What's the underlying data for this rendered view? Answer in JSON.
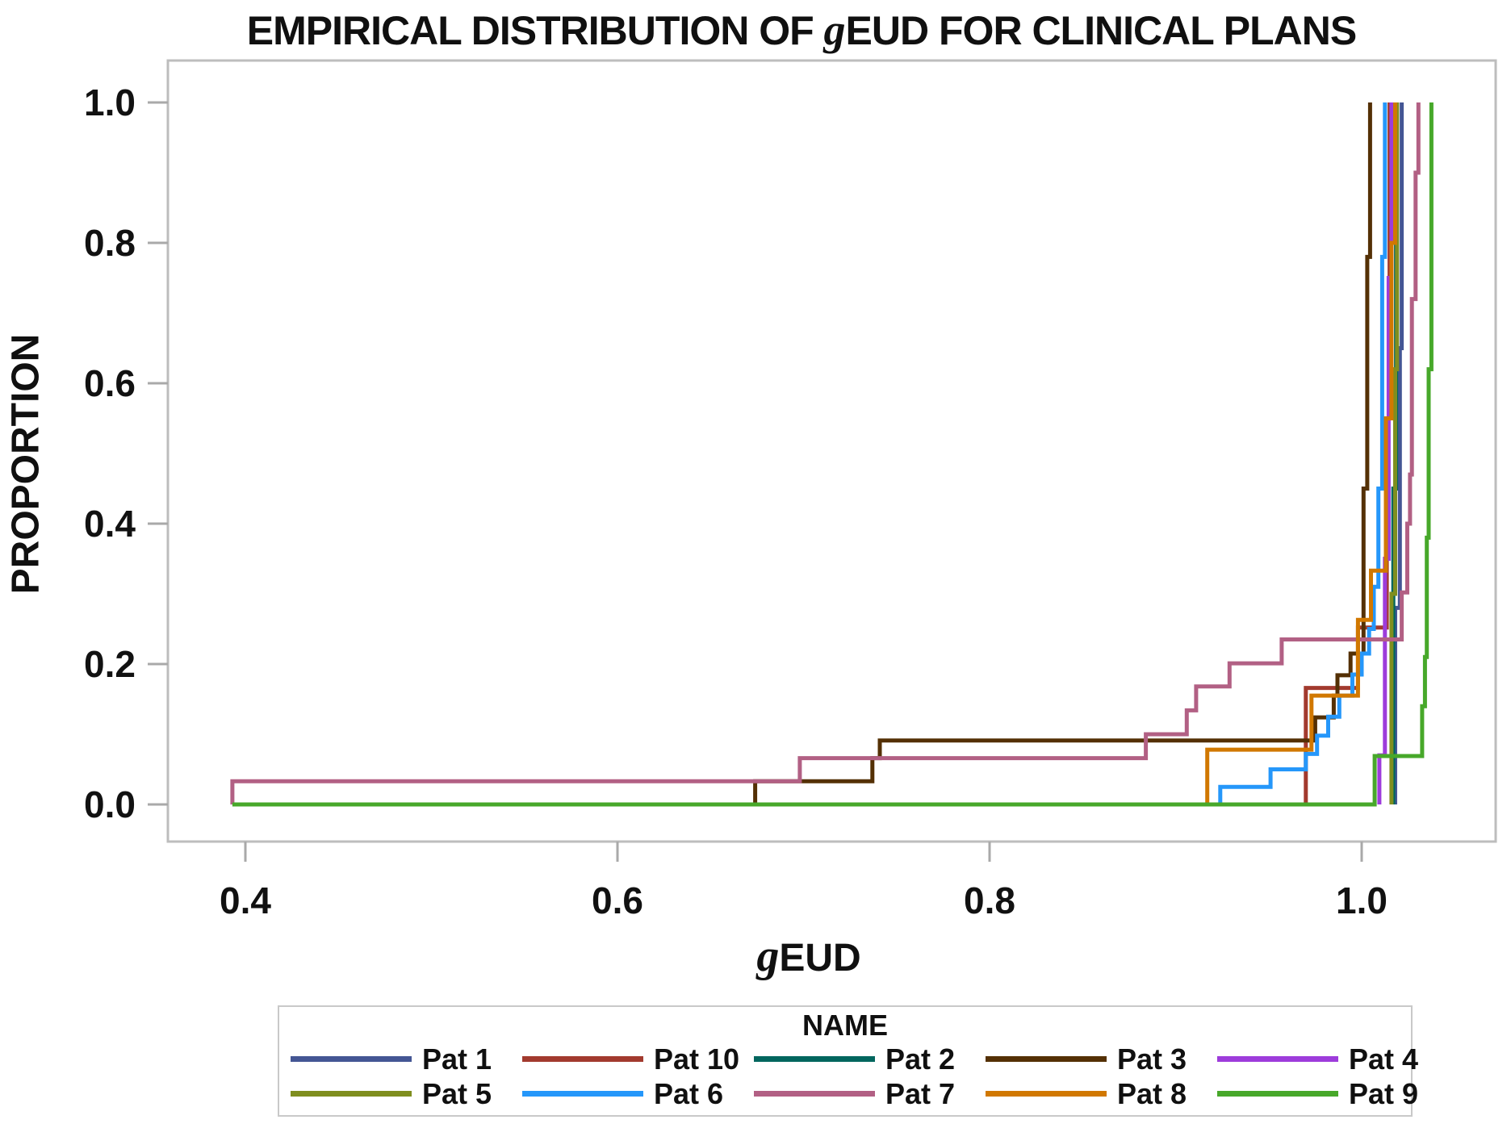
{
  "title": {
    "prefix": "EMPIRICAL DISTRIBUTION OF ",
    "italic": "g",
    "suffix": "EUD FOR CLINICAL PLANS"
  },
  "axes": {
    "x": {
      "label_italic": "g",
      "label_bold": "EUD"
    },
    "y": {
      "label": "PROPORTION"
    }
  },
  "legend": {
    "title": "NAME",
    "rows": [
      [
        "Pat 1",
        "Pat 10",
        "Pat 2",
        "Pat 3",
        "Pat 4"
      ],
      [
        "Pat 5",
        "Pat 6",
        "Pat 7",
        "Pat 8",
        "Pat 9"
      ]
    ]
  },
  "colors": {
    "frame": "#bdbdbd",
    "tick": "#a9a9a9",
    "text": "#111111"
  },
  "chart_data": {
    "type": "line",
    "subtype": "empirical-cdf-step",
    "title": "EMPIRICAL DISTRIBUTION OF gEUD FOR CLINICAL PLANS",
    "xlabel": "gEUD",
    "ylabel": "PROPORTION",
    "xlim": [
      0.358,
      1.072
    ],
    "ylim": [
      -0.053,
      1.06
    ],
    "x_ticks": [
      0.4,
      0.6,
      0.8,
      1.0
    ],
    "x_tick_labels": [
      "0.4",
      "0.6",
      "0.8",
      "1.0"
    ],
    "y_ticks": [
      0.0,
      0.2,
      0.4,
      0.6,
      0.8,
      1.0
    ],
    "y_tick_labels": [
      "0.0",
      "0.2",
      "0.4",
      "0.6",
      "0.8",
      "1.0"
    ],
    "grid": false,
    "legend_position": "bottom",
    "series": [
      {
        "name": "Pat 1",
        "color": "#445694",
        "points": [
          [
            1.018,
            0
          ],
          [
            1.018,
            0.28
          ],
          [
            1.0205,
            0.28
          ],
          [
            1.0205,
            0.65
          ],
          [
            1.0215,
            0.65
          ],
          [
            1.0215,
            1.0
          ]
        ]
      },
      {
        "name": "Pat 10",
        "color": "#A23A2E",
        "points": [
          [
            0.97,
            0
          ],
          [
            0.97,
            0.166
          ],
          [
            0.998,
            0.166
          ],
          [
            0.998,
            0.252
          ],
          [
            1.0135,
            0.252
          ],
          [
            1.0135,
            0.55
          ],
          [
            1.015,
            0.55
          ],
          [
            1.015,
            1.0
          ]
        ]
      },
      {
        "name": "Pat 2",
        "color": "#01665E",
        "points": [
          [
            1.017,
            0
          ],
          [
            1.017,
            0.45
          ],
          [
            1.0185,
            0.45
          ],
          [
            1.0185,
            1.0
          ]
        ]
      },
      {
        "name": "Pat 3",
        "color": "#543005",
        "points": [
          [
            0.674,
            0
          ],
          [
            0.674,
            0.033
          ],
          [
            0.737,
            0.033
          ],
          [
            0.737,
            0.066
          ],
          [
            0.741,
            0.066
          ],
          [
            0.741,
            0.091
          ],
          [
            0.975,
            0.091
          ],
          [
            0.975,
            0.124
          ],
          [
            0.985,
            0.124
          ],
          [
            0.985,
            0.155
          ],
          [
            0.987,
            0.155
          ],
          [
            0.987,
            0.184
          ],
          [
            0.994,
            0.184
          ],
          [
            0.994,
            0.215
          ],
          [
            1.001,
            0.215
          ],
          [
            1.001,
            0.45
          ],
          [
            1.003,
            0.45
          ],
          [
            1.003,
            0.78
          ],
          [
            1.0045,
            0.78
          ],
          [
            1.0045,
            1.0
          ]
        ]
      },
      {
        "name": "Pat 4",
        "color": "#9D3CDB",
        "points": [
          [
            1.0095,
            0
          ],
          [
            1.0095,
            0.07
          ],
          [
            1.0125,
            0.07
          ],
          [
            1.0125,
            0.35
          ],
          [
            1.0145,
            0.35
          ],
          [
            1.0145,
            0.75
          ],
          [
            1.016,
            0.75
          ],
          [
            1.016,
            1.0
          ]
        ]
      },
      {
        "name": "Pat 5",
        "color": "#7F8E1F",
        "points": [
          [
            1.016,
            0
          ],
          [
            1.016,
            0.3
          ],
          [
            1.018,
            0.3
          ],
          [
            1.018,
            0.62
          ],
          [
            1.019,
            0.62
          ],
          [
            1.019,
            1.0
          ]
        ]
      },
      {
        "name": "Pat 6",
        "color": "#2597FA",
        "points": [
          [
            0.924,
            0
          ],
          [
            0.924,
            0.025
          ],
          [
            0.951,
            0.025
          ],
          [
            0.951,
            0.05
          ],
          [
            0.97,
            0.05
          ],
          [
            0.97,
            0.072
          ],
          [
            0.976,
            0.072
          ],
          [
            0.976,
            0.098
          ],
          [
            0.982,
            0.098
          ],
          [
            0.982,
            0.125
          ],
          [
            0.988,
            0.125
          ],
          [
            0.988,
            0.155
          ],
          [
            0.995,
            0.155
          ],
          [
            0.995,
            0.185
          ],
          [
            1.0,
            0.185
          ],
          [
            1.0,
            0.215
          ],
          [
            1.004,
            0.215
          ],
          [
            1.004,
            0.25
          ],
          [
            1.0065,
            0.25
          ],
          [
            1.0065,
            0.31
          ],
          [
            1.009,
            0.31
          ],
          [
            1.009,
            0.45
          ],
          [
            1.011,
            0.45
          ],
          [
            1.011,
            0.78
          ],
          [
            1.0125,
            0.78
          ],
          [
            1.0125,
            1.0
          ]
        ]
      },
      {
        "name": "Pat 7",
        "color": "#B26084",
        "points": [
          [
            0.393,
            0
          ],
          [
            0.393,
            0.033
          ],
          [
            0.698,
            0.033
          ],
          [
            0.698,
            0.066
          ],
          [
            0.884,
            0.066
          ],
          [
            0.884,
            0.1
          ],
          [
            0.906,
            0.1
          ],
          [
            0.906,
            0.134
          ],
          [
            0.911,
            0.134
          ],
          [
            0.911,
            0.168
          ],
          [
            0.929,
            0.168
          ],
          [
            0.929,
            0.201
          ],
          [
            0.957,
            0.201
          ],
          [
            0.957,
            0.235
          ],
          [
            1.0215,
            0.235
          ],
          [
            1.0215,
            0.302
          ],
          [
            1.0245,
            0.302
          ],
          [
            1.0245,
            0.4
          ],
          [
            1.026,
            0.4
          ],
          [
            1.026,
            0.47
          ],
          [
            1.027,
            0.47
          ],
          [
            1.027,
            0.72
          ],
          [
            1.029,
            0.72
          ],
          [
            1.029,
            0.9
          ],
          [
            1.0305,
            0.9
          ],
          [
            1.0305,
            1.0
          ]
        ]
      },
      {
        "name": "Pat 8",
        "color": "#D17800",
        "points": [
          [
            0.917,
            0
          ],
          [
            0.917,
            0.078
          ],
          [
            0.973,
            0.078
          ],
          [
            0.973,
            0.155
          ],
          [
            0.998,
            0.155
          ],
          [
            0.998,
            0.263
          ],
          [
            1.005,
            0.263
          ],
          [
            1.005,
            0.333
          ],
          [
            1.013,
            0.333
          ],
          [
            1.013,
            0.55
          ],
          [
            1.016,
            0.55
          ],
          [
            1.016,
            0.8
          ],
          [
            1.018,
            0.8
          ],
          [
            1.018,
            1.0
          ]
        ]
      },
      {
        "name": "Pat 9",
        "color": "#47A82A",
        "points": [
          [
            0.393,
            0
          ],
          [
            1.007,
            0
          ],
          [
            1.007,
            0.069
          ],
          [
            1.0325,
            0.069
          ],
          [
            1.0325,
            0.14
          ],
          [
            1.034,
            0.14
          ],
          [
            1.034,
            0.21
          ],
          [
            1.035,
            0.21
          ],
          [
            1.035,
            0.38
          ],
          [
            1.036,
            0.38
          ],
          [
            1.036,
            0.62
          ],
          [
            1.0375,
            0.62
          ],
          [
            1.0375,
            1.0
          ]
        ]
      }
    ]
  }
}
